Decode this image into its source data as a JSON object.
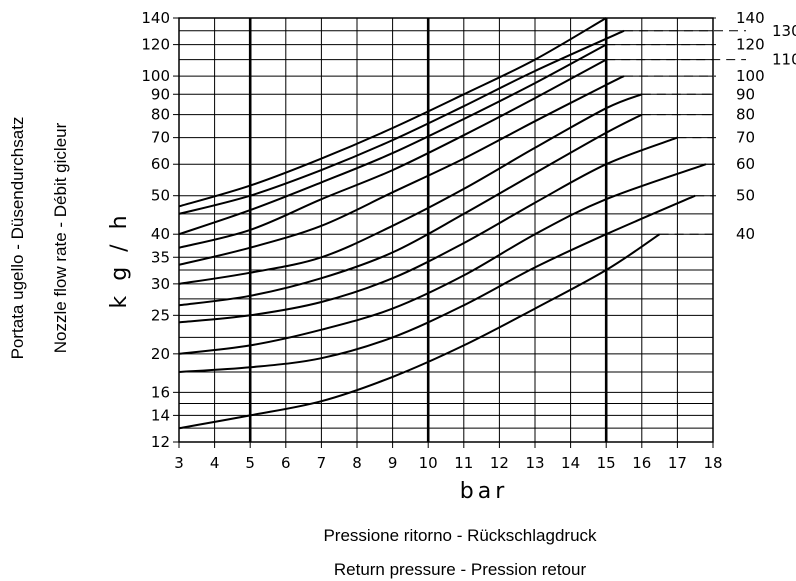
{
  "chart_data": {
    "type": "line",
    "xlabel_unit": "bar",
    "ylabel_unit": "k g / h",
    "xlabel_lines": [
      "Pressione ritorno - Rückschlagdruck",
      "Return pressure - Pression retour"
    ],
    "ylabel_lines": [
      "Portata ugello - Düsendurchsatz",
      "Nozzle flow rate - Débit gicleur"
    ],
    "xlim": [
      3,
      18
    ],
    "ylim": [
      12,
      140
    ],
    "y_scale": "log",
    "grid": true,
    "x_ticks": [
      "3",
      "4",
      "5",
      "6",
      "7",
      "8",
      "9",
      "10",
      "11",
      "12",
      "13",
      "14",
      "15",
      "16",
      "17",
      "18"
    ],
    "y_ticks": [
      {
        "value": 12,
        "label": "12"
      },
      {
        "value": 14,
        "label": "14"
      },
      {
        "value": 16,
        "label": "16"
      },
      {
        "value": 20,
        "label": "20"
      },
      {
        "value": 25,
        "label": "25"
      },
      {
        "value": 30,
        "label": "30"
      },
      {
        "value": 35,
        "label": "35"
      },
      {
        "value": 40,
        "label": "40"
      },
      {
        "value": 50,
        "label": "50"
      },
      {
        "value": 60,
        "label": "60"
      },
      {
        "value": 70,
        "label": "70"
      },
      {
        "value": 80,
        "label": "80"
      },
      {
        "value": 90,
        "label": "90"
      },
      {
        "value": 100,
        "label": "100"
      },
      {
        "value": 120,
        "label": "120"
      },
      {
        "value": 140,
        "label": "140"
      }
    ],
    "y_gridlines": [
      12,
      13,
      14,
      15,
      16,
      18,
      20,
      22,
      25,
      27.5,
      30,
      32.5,
      35,
      40,
      45,
      50,
      60,
      70,
      80,
      90,
      100,
      110,
      120,
      130,
      140
    ],
    "x_bold_lines": [
      5,
      10,
      15
    ],
    "series": [
      {
        "end_label": "140",
        "points": [
          [
            3,
            47
          ],
          [
            5,
            53
          ],
          [
            7,
            62
          ],
          [
            9,
            74
          ],
          [
            11,
            90
          ],
          [
            13,
            110
          ],
          [
            15,
            140
          ]
        ]
      },
      {
        "end_label": "130",
        "points": [
          [
            3,
            45
          ],
          [
            5,
            50
          ],
          [
            7,
            58
          ],
          [
            9,
            69
          ],
          [
            11,
            84
          ],
          [
            13,
            103
          ],
          [
            15.5,
            130
          ]
        ]
      },
      {
        "end_label": "120",
        "points": [
          [
            3,
            40
          ],
          [
            5,
            46
          ],
          [
            7,
            54
          ],
          [
            9,
            64
          ],
          [
            11,
            78
          ],
          [
            13,
            96
          ],
          [
            15,
            120
          ]
        ]
      },
      {
        "end_label": "110",
        "points": [
          [
            3,
            37
          ],
          [
            5,
            41
          ],
          [
            7,
            49
          ],
          [
            9,
            58
          ],
          [
            11,
            71
          ],
          [
            13,
            88
          ],
          [
            15,
            110
          ]
        ]
      },
      {
        "end_label": "100",
        "points": [
          [
            3,
            33.5
          ],
          [
            5,
            37
          ],
          [
            7,
            42
          ],
          [
            9,
            51
          ],
          [
            11,
            62
          ],
          [
            13,
            77
          ],
          [
            15,
            95
          ],
          [
            15.5,
            100
          ]
        ]
      },
      {
        "end_label": "90",
        "points": [
          [
            3,
            30
          ],
          [
            5,
            32
          ],
          [
            7,
            35
          ],
          [
            9,
            42
          ],
          [
            11,
            52
          ],
          [
            13,
            66
          ],
          [
            15,
            83
          ],
          [
            16,
            90
          ]
        ]
      },
      {
        "end_label": "80",
        "points": [
          [
            3,
            26.5
          ],
          [
            5,
            28
          ],
          [
            7,
            31
          ],
          [
            9,
            36
          ],
          [
            11,
            45
          ],
          [
            13,
            57
          ],
          [
            15,
            72
          ],
          [
            16,
            80
          ]
        ]
      },
      {
        "end_label": "70",
        "points": [
          [
            3,
            24
          ],
          [
            5,
            25
          ],
          [
            7,
            27
          ],
          [
            9,
            31
          ],
          [
            11,
            38
          ],
          [
            13,
            48
          ],
          [
            15,
            60
          ],
          [
            17,
            70
          ]
        ]
      },
      {
        "end_label": "60",
        "points": [
          [
            3,
            20
          ],
          [
            5,
            21
          ],
          [
            7,
            23
          ],
          [
            9,
            26
          ],
          [
            11,
            31.5
          ],
          [
            13,
            40
          ],
          [
            15,
            49
          ],
          [
            17.8,
            60
          ]
        ]
      },
      {
        "end_label": "50",
        "points": [
          [
            3,
            18
          ],
          [
            5,
            18.5
          ],
          [
            7,
            19.5
          ],
          [
            9,
            22
          ],
          [
            11,
            26.5
          ],
          [
            13,
            33
          ],
          [
            15,
            40
          ],
          [
            17.5,
            50
          ]
        ]
      },
      {
        "end_label": "40",
        "points": [
          [
            3,
            13
          ],
          [
            5,
            14
          ],
          [
            7,
            15.2
          ],
          [
            9,
            17.5
          ],
          [
            11,
            21
          ],
          [
            13,
            26
          ],
          [
            15,
            32.5
          ],
          [
            16.5,
            40
          ]
        ]
      }
    ]
  }
}
